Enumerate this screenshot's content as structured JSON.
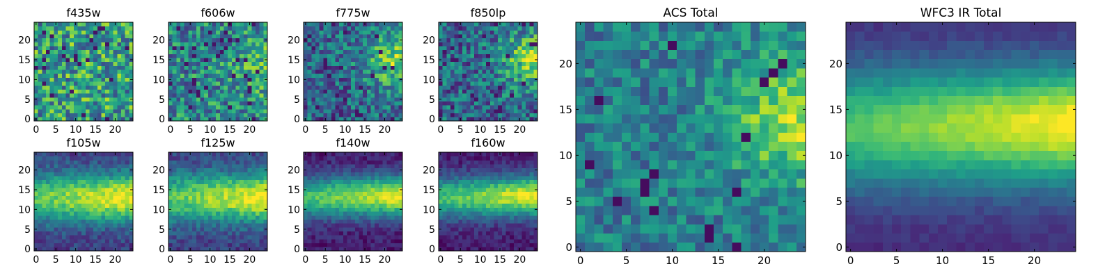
{
  "chart_data": [
    {
      "type": "heatmap",
      "title": "f435w",
      "pattern": "noise_flat",
      "x_ticks": [
        "0",
        "5",
        "10",
        "15",
        "20"
      ],
      "y_ticks": [
        "0",
        "5",
        "10",
        "15",
        "20"
      ],
      "xlim": [
        -0.5,
        24.5
      ],
      "ylim": [
        -0.5,
        24.5
      ],
      "grid": false,
      "colormap": "viridis"
    },
    {
      "type": "heatmap",
      "title": "f606w",
      "pattern": "noise_right",
      "x_ticks": [
        "0",
        "5",
        "10",
        "15",
        "20"
      ],
      "y_ticks": [
        "0",
        "5",
        "10",
        "15",
        "20"
      ],
      "xlim": [
        -0.5,
        24.5
      ],
      "ylim": [
        -0.5,
        24.5
      ],
      "grid": false,
      "colormap": "viridis"
    },
    {
      "type": "heatmap",
      "title": "f775w",
      "pattern": "noise_right_strong",
      "x_ticks": [
        "0",
        "5",
        "10",
        "15",
        "20"
      ],
      "y_ticks": [
        "0",
        "5",
        "10",
        "15",
        "20"
      ],
      "xlim": [
        -0.5,
        24.5
      ],
      "ylim": [
        -0.5,
        24.5
      ],
      "grid": false,
      "colormap": "viridis"
    },
    {
      "type": "heatmap",
      "title": "f850lp",
      "pattern": "noise_right_strong",
      "x_ticks": [
        "0",
        "5",
        "10",
        "15",
        "20"
      ],
      "y_ticks": [
        "0",
        "5",
        "10",
        "15",
        "20"
      ],
      "xlim": [
        -0.5,
        24.5
      ],
      "ylim": [
        -0.5,
        24.5
      ],
      "grid": false,
      "colormap": "viridis"
    },
    {
      "type": "heatmap",
      "title": "f105w",
      "pattern": "band",
      "x_ticks": [
        "0",
        "5",
        "10",
        "15",
        "20"
      ],
      "y_ticks": [
        "0",
        "5",
        "10",
        "15",
        "20"
      ],
      "xlim": [
        -0.5,
        24.5
      ],
      "ylim": [
        -0.5,
        24.5
      ],
      "grid": false,
      "colormap": "viridis"
    },
    {
      "type": "heatmap",
      "title": "f125w",
      "pattern": "band",
      "x_ticks": [
        "0",
        "5",
        "10",
        "15",
        "20"
      ],
      "y_ticks": [
        "0",
        "5",
        "10",
        "15",
        "20"
      ],
      "xlim": [
        -0.5,
        24.5
      ],
      "ylim": [
        -0.5,
        24.5
      ],
      "grid": false,
      "colormap": "viridis"
    },
    {
      "type": "heatmap",
      "title": "f140w",
      "pattern": "band_sharp",
      "x_ticks": [
        "0",
        "5",
        "10",
        "15",
        "20"
      ],
      "y_ticks": [
        "0",
        "5",
        "10",
        "15",
        "20"
      ],
      "xlim": [
        -0.5,
        24.5
      ],
      "ylim": [
        -0.5,
        24.5
      ],
      "grid": false,
      "colormap": "viridis"
    },
    {
      "type": "heatmap",
      "title": "f160w",
      "pattern": "band_sharp",
      "x_ticks": [
        "0",
        "5",
        "10",
        "15",
        "20"
      ],
      "y_ticks": [
        "0",
        "5",
        "10",
        "15",
        "20"
      ],
      "xlim": [
        -0.5,
        24.5
      ],
      "ylim": [
        -0.5,
        24.5
      ],
      "grid": false,
      "colormap": "viridis"
    },
    {
      "type": "heatmap",
      "title": "ACS Total",
      "pattern": "acs_total",
      "x_ticks": [
        "0",
        "5",
        "10",
        "15",
        "20"
      ],
      "y_ticks": [
        "0",
        "5",
        "10",
        "15",
        "20"
      ],
      "xlim": [
        -0.5,
        24.5
      ],
      "ylim": [
        -0.5,
        24.5
      ],
      "grid": false,
      "colormap": "viridis"
    },
    {
      "type": "heatmap",
      "title": "WFC3 IR Total",
      "pattern": "ir_total",
      "x_ticks": [
        "0",
        "5",
        "10",
        "15",
        "20"
      ],
      "y_ticks": [
        "0",
        "5",
        "10",
        "15",
        "20"
      ],
      "xlim": [
        -0.5,
        24.5
      ],
      "ylim": [
        -0.5,
        24.5
      ],
      "grid": false,
      "colormap": "viridis"
    }
  ]
}
